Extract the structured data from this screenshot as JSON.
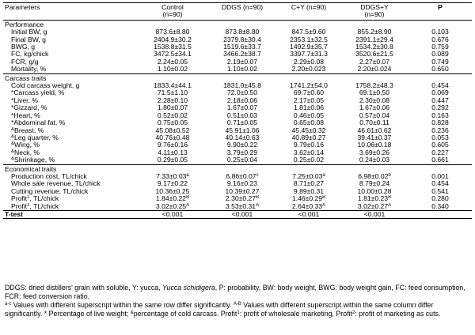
{
  "headers": {
    "parameters": "Parameters",
    "control": "Control",
    "control_n": "(n=90)",
    "ddgs": "DDGS (n=90)",
    "cy": "C+Y (n=90)",
    "ddgsy": "DDGS+Y",
    "ddgsy_n": "(n=90)",
    "p": "P"
  },
  "sections": [
    {
      "title": "Performance",
      "rows": [
        {
          "label": "Initial BW, g",
          "control": "873.6±8.80",
          "ddgs": "873.8±8.80",
          "cy": "847.5±9.60",
          "ddgsy": "855.2±8.90",
          "p": "0.103"
        },
        {
          "label": "Final BW, g",
          "control": "2404.9±30.2",
          "ddgs": "2379.8±30.4",
          "cy": "2353.1±32.5",
          "ddgsy": "2391.1±29.4",
          "p": "0.676"
        },
        {
          "label": "BWG, g",
          "control": "1538.8±31.5",
          "ddgs": "1519.6±33.7",
          "cy": "1492.9±35.7",
          "ddgsy": "1534.2±30.8",
          "p": "0.759"
        },
        {
          "label": "FC, kg/chick",
          "control": "3472.5±34.1",
          "ddgs": "3466.2±38.7",
          "cy": "3397.7±31.3",
          "ddgsy": "3520.6±21.5",
          "p": "0.089"
        },
        {
          "label": "FCR, g/g",
          "control": "2.24±0.05",
          "ddgs": "2.19±0.07",
          "cy": "2.29±0.08",
          "ddgsy": "2.27±0.07",
          "p": "0.749"
        },
        {
          "label": "Mortality, %",
          "control": "1.10±0.02",
          "ddgs": "1.10±0.02",
          "cy": "2.20±0.023",
          "ddgsy": "2.20±0.024",
          "p": "0.650"
        }
      ]
    },
    {
      "title": "Carcass traits",
      "rows": [
        {
          "label": "Cold carcass weight, g",
          "control": "1833.4±44.1",
          "ddgs": "1831.0±45.8",
          "cy": "1741.2±54.0",
          "ddgsy": "1758.2±48.3",
          "p": "0.454"
        },
        {
          "label": "*Carcass yield, %",
          "control": "71.5±1.10",
          "ddgs": "72.0±0.50",
          "cy": "69.7±0.60",
          "ddgsy": "69.1±0.50",
          "p": "0.069"
        },
        {
          "label": "*Liver, %",
          "control": "2.28±0.10",
          "ddgs": "2.18±0.06",
          "cy": "2.17±0.05",
          "ddgsy": "2.30±0.08",
          "p": "0.447"
        },
        {
          "label": "*Gizzard, %",
          "control": "1.80±0.07",
          "ddgs": "1.67±0.07",
          "cy": "1.81±0.06",
          "ddgsy": "1.67±0.06",
          "p": "0.292"
        },
        {
          "label": "*Heart, %",
          "control": "0.52±0.02",
          "ddgs": "0.51±0.03",
          "cy": "0.46±0.05",
          "ddgsy": "0.57±0.04",
          "p": "0.163"
        },
        {
          "label": "*Abdominal fat, %",
          "control": "0.75±0.05",
          "ddgs": "0.71±0.05",
          "cy": "0.65±0.08",
          "ddgsy": "0.70±0.11",
          "p": "0.828"
        },
        {
          "label": "Breast, %",
          "label_sup": "&",
          "control": "45.08±0.52",
          "ddgs": "45.91±1.06",
          "cy": "45.45±0.32",
          "ddgsy": "46.61±0.62",
          "p": "0.236"
        },
        {
          "label": "Leg quarter, %",
          "label_sup": "&",
          "control": "40.76±0.48",
          "ddgs": "40.14±0.63",
          "cy": "40.89±0.27",
          "ddgsy": "39.41±0.37",
          "p": "0.053"
        },
        {
          "label": "Wing, %",
          "label_sup": "&",
          "control": "9.76±0.16",
          "ddgs": "9.90±0.22",
          "cy": "9.79±0.16",
          "ddgsy": "10.06±0.18",
          "p": "0.605"
        },
        {
          "label": "Neck, %",
          "label_sup": "&",
          "control": "4.11±0.13",
          "ddgs": "3.79±0.29",
          "cy": "3.62±0.14",
          "ddgsy": "3.69±0.26",
          "p": "0.227"
        },
        {
          "label": "Shrinkage, %",
          "label_sup": "&",
          "control": "0.29±0.05",
          "ddgs": "0.25±0.04",
          "cy": "0.25±0.02",
          "ddgsy": "0.24±0.03",
          "p": "0.661"
        }
      ]
    },
    {
      "title": "Economical traits",
      "rows": [
        {
          "label": "Production cost, TL/chick",
          "control": "7.33±0.03",
          "control_sup": "a",
          "ddgs": "6.86±0.07",
          "ddgs_sup": "c",
          "cy": "7.25±0.03",
          "cy_sup": "a",
          "ddgsy": "6.98±0.02",
          "ddgsy_sup": "b",
          "p": "0.001"
        },
        {
          "label": "Whole sale revenue, TL/chick",
          "control": "9.17±0.22",
          "ddgs": "9.16±0.23",
          "cy": "8.71±0.27",
          "ddgsy": "8.79±0.24",
          "p": "0.454"
        },
        {
          "label": "Cutting revenue, TL/chick",
          "control": "10.36±0.25",
          "ddgs": "10.39±0.27",
          "cy": "9.89±0.31",
          "ddgsy": "10.00±0.28",
          "p": "0.541"
        },
        {
          "label": "Profit",
          "label_sup": "1",
          "label_suffix": ", TL/chick",
          "control": "1.84±0.22",
          "control_sup": "B",
          "ddgs": "2.30±0.27",
          "ddgs_sup": "B",
          "cy": "1.46±0.29",
          "cy_sup": "B",
          "ddgsy": "1.81±0.23",
          "ddgsy_sup": "B",
          "p": "0.280"
        },
        {
          "label": "Profit",
          "label_sup": "2",
          "label_suffix": ", TL/chick",
          "control": "3.02±0.25",
          "control_sup": "A",
          "ddgs": "3.53±0.31",
          "ddgs_sup": "A",
          "cy": "2.64±0.33",
          "cy_sup": "A",
          "ddgsy": "3.02±0.27",
          "ddgsy_sup": "A",
          "p": "0.340"
        }
      ]
    }
  ],
  "ttest": {
    "label": "T-test",
    "control": "<0.001",
    "ddgs": "<0.001",
    "cy": "<0.001",
    "ddgsy": "<0.001",
    "p": ""
  },
  "footnote": {
    "line1": "DDGS: dried distillers' grain with soluble, Y: yucca, ",
    "line1_italic": "Yucca schidigera",
    "line1_rest": ", P: probability, BW: body weight, BWG: body weight gain, FC: feed consumption, FCR: feed conversion ratio.",
    "sup_ac": "a-c",
    "line2": " Values with different superscript within the same row differ significantly. ",
    "sup_ab": "A-B",
    "line2_rest": " Values with different superscript within the same column differ significantly. * Percentage of live weight; ",
    "sup_amp": "&",
    "line3": "percentage of cold carcass. Profit",
    "sup_1": "1",
    "line3_mid": ": profit of wholesale marketing, Profit",
    "sup_2": "2",
    "line3_end": ": profit of marketing as cuts."
  }
}
